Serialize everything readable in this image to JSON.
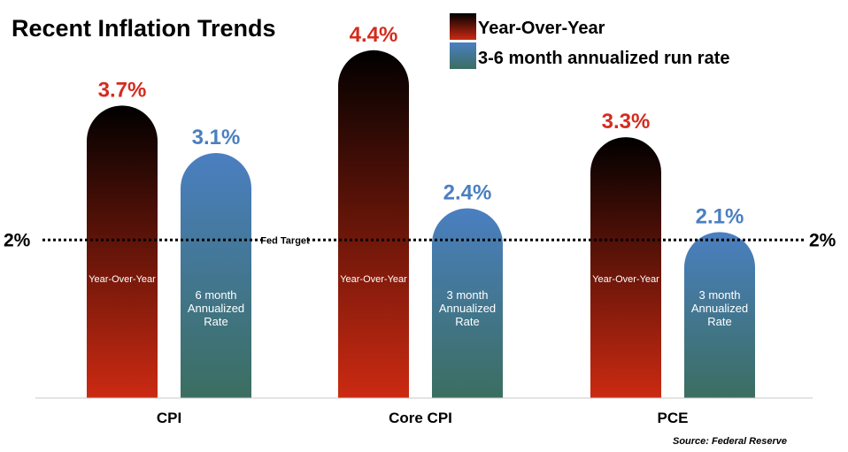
{
  "chart_data": {
    "type": "bar",
    "title": "Recent Inflation Trends",
    "categories": [
      "CPI",
      "Core CPI",
      "PCE"
    ],
    "series": [
      {
        "name": "Year-Over-Year",
        "values": [
          3.7,
          4.4,
          3.3
        ],
        "labels": [
          "3.7%",
          "4.4%",
          "3.3%"
        ],
        "bar_text": [
          [
            "Year-Over-Year"
          ],
          [
            "Year-Over-Year"
          ],
          [
            "Year-Over-Year"
          ]
        ],
        "color_top": "#000000",
        "color_bottom": "#cc2a12",
        "label_color": "#d52b1e"
      },
      {
        "name": "3-6 month annualized run rate",
        "values": [
          3.1,
          2.4,
          2.1
        ],
        "labels": [
          "3.1%",
          "2.4%",
          "2.1%"
        ],
        "bar_text": [
          [
            "6 month",
            "Annualized",
            "Rate"
          ],
          [
            "3 month",
            "Annualized",
            "Rate"
          ],
          [
            "3 month",
            "Annualized",
            "Rate"
          ]
        ],
        "color_top": "#4a7fc1",
        "color_bottom": "#3b6e60",
        "label_color": "#4a7fc1"
      }
    ],
    "reference_line": {
      "value": 2,
      "label": "Fed Target",
      "left_label": "2%",
      "right_label": "2%",
      "style": "dotted"
    },
    "ylim": [
      0,
      4.7
    ],
    "source": "Source: Federal Reserve",
    "legend_position": "top-right",
    "grid": false
  }
}
